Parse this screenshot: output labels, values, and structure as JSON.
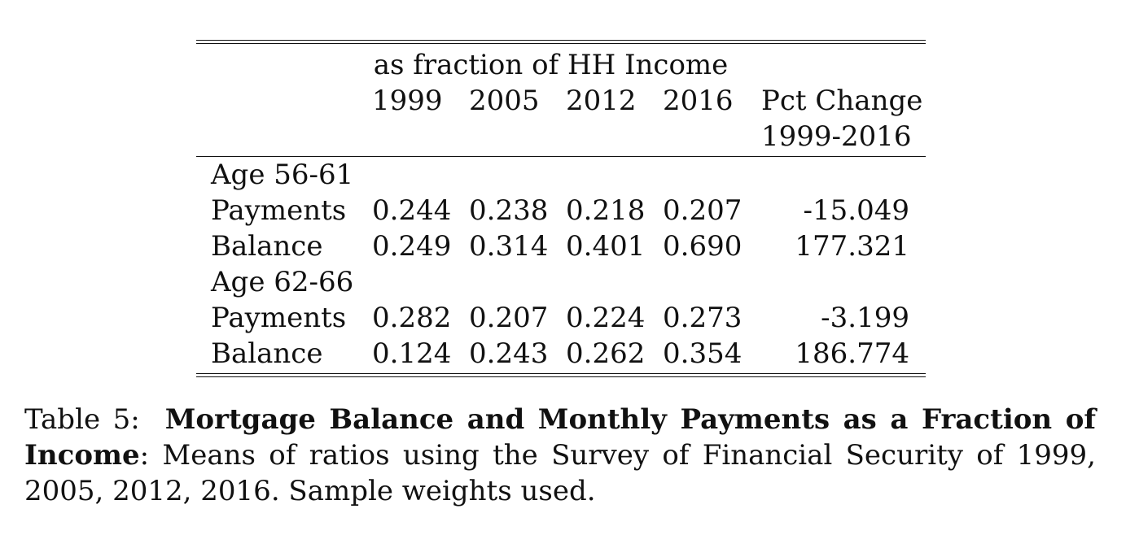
{
  "table": {
    "spanner": "as fraction of HH Income",
    "years": [
      "1999",
      "2005",
      "2012",
      "2016"
    ],
    "pct_header_line1": "Pct Change",
    "pct_header_line2": "1999-2016",
    "groups": [
      {
        "label": "Age 56-61",
        "rows": [
          {
            "label": "Payments",
            "values": [
              "0.244",
              "0.238",
              "0.218",
              "0.207"
            ],
            "pct": "-15.049"
          },
          {
            "label": "Balance",
            "values": [
              "0.249",
              "0.314",
              "0.401",
              "0.690"
            ],
            "pct": "177.321"
          }
        ]
      },
      {
        "label": "Age 62-66",
        "rows": [
          {
            "label": "Payments",
            "values": [
              "0.282",
              "0.207",
              "0.224",
              "0.273"
            ],
            "pct": "-3.199"
          },
          {
            "label": "Balance",
            "values": [
              "0.124",
              "0.243",
              "0.262",
              "0.354"
            ],
            "pct": "186.774"
          }
        ]
      }
    ]
  },
  "caption": {
    "prefix": "Table 5:",
    "title": "Mortgage Balance and Monthly Payments as a Fraction of Income",
    "text": ": Means of ratios using the Survey of Financial Security of 1999, 2005, 2012, 2016. Sample weights used."
  }
}
